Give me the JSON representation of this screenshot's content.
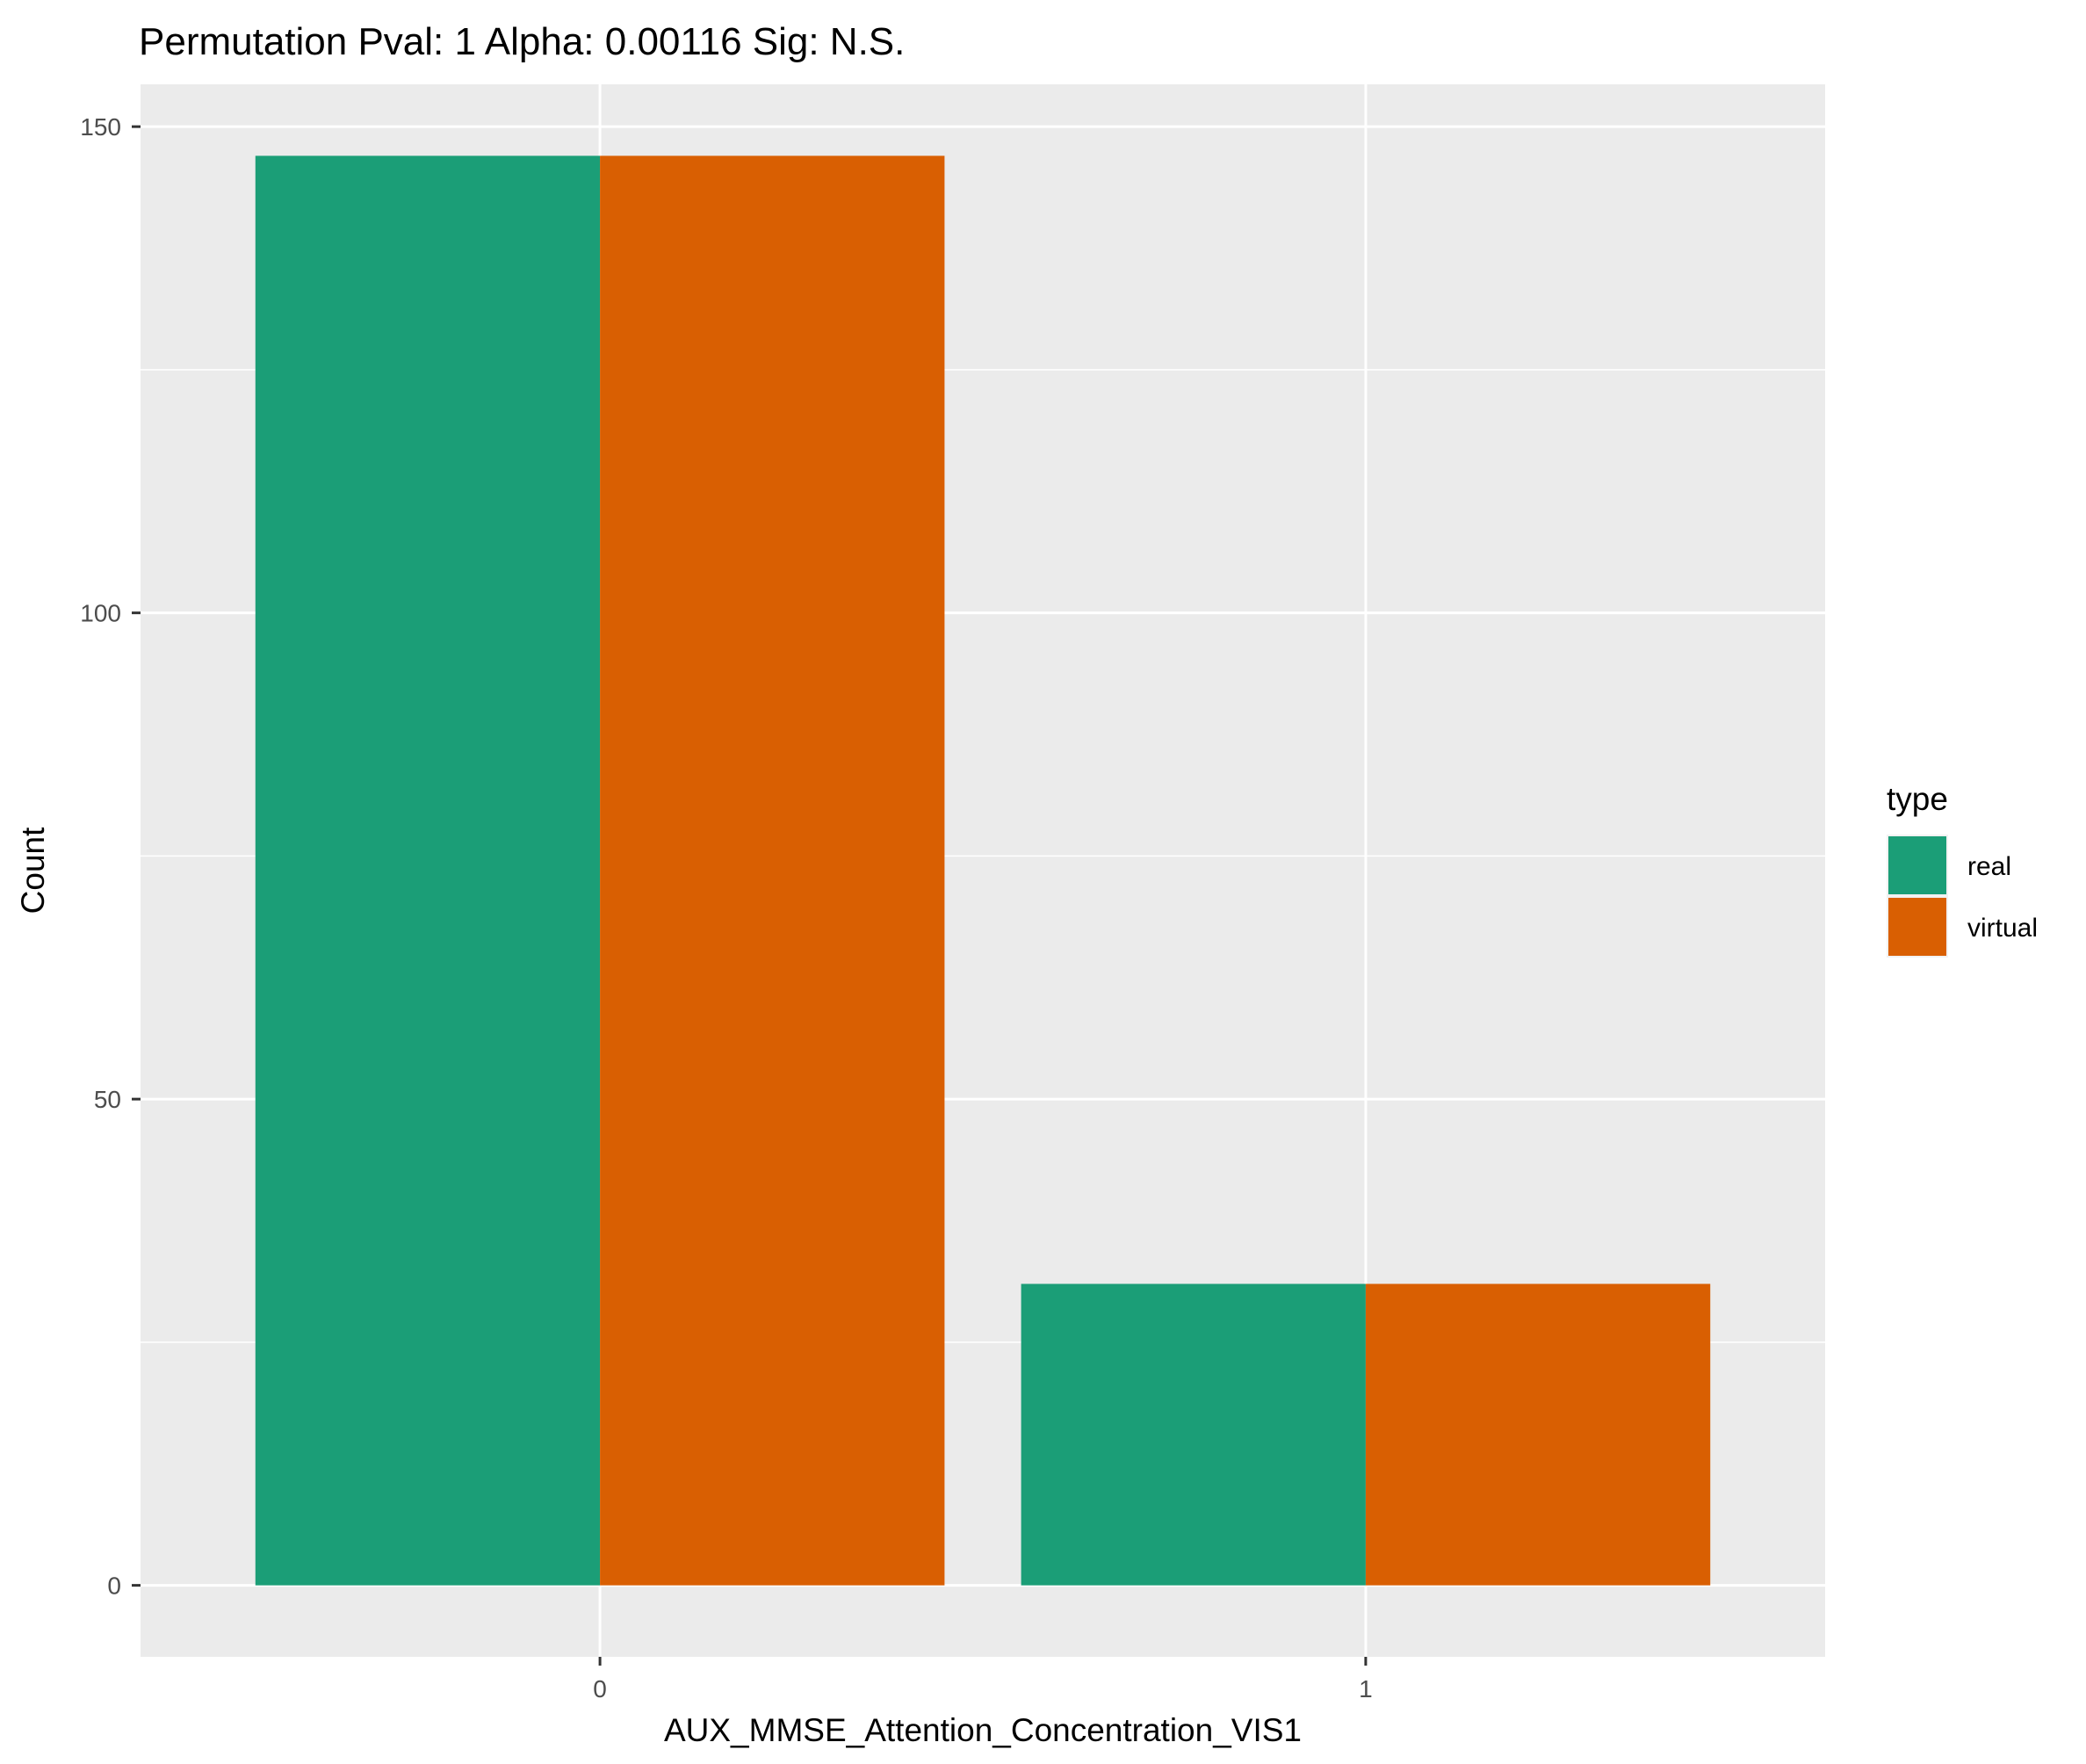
{
  "chart_data": {
    "type": "bar",
    "title": "Permutation Pval: 1 Alpha: 0.00116 Sig: N.S.",
    "xlabel": "AUX_MMSE_Attention_Concentration_VIS1",
    "ylabel": "Count",
    "categories": [
      "0",
      "1"
    ],
    "series": [
      {
        "name": "real",
        "color": "#1b9e77",
        "values": [
          147,
          31
        ]
      },
      {
        "name": "virtual",
        "color": "#d95f02",
        "values": [
          147,
          31
        ]
      }
    ],
    "ylim": [
      -7.35,
      154.35
    ],
    "yticks": [
      0,
      50,
      100,
      150
    ],
    "grid": true,
    "legend": {
      "title": "type",
      "position": "right"
    },
    "panel_background": "#ebebeb"
  }
}
